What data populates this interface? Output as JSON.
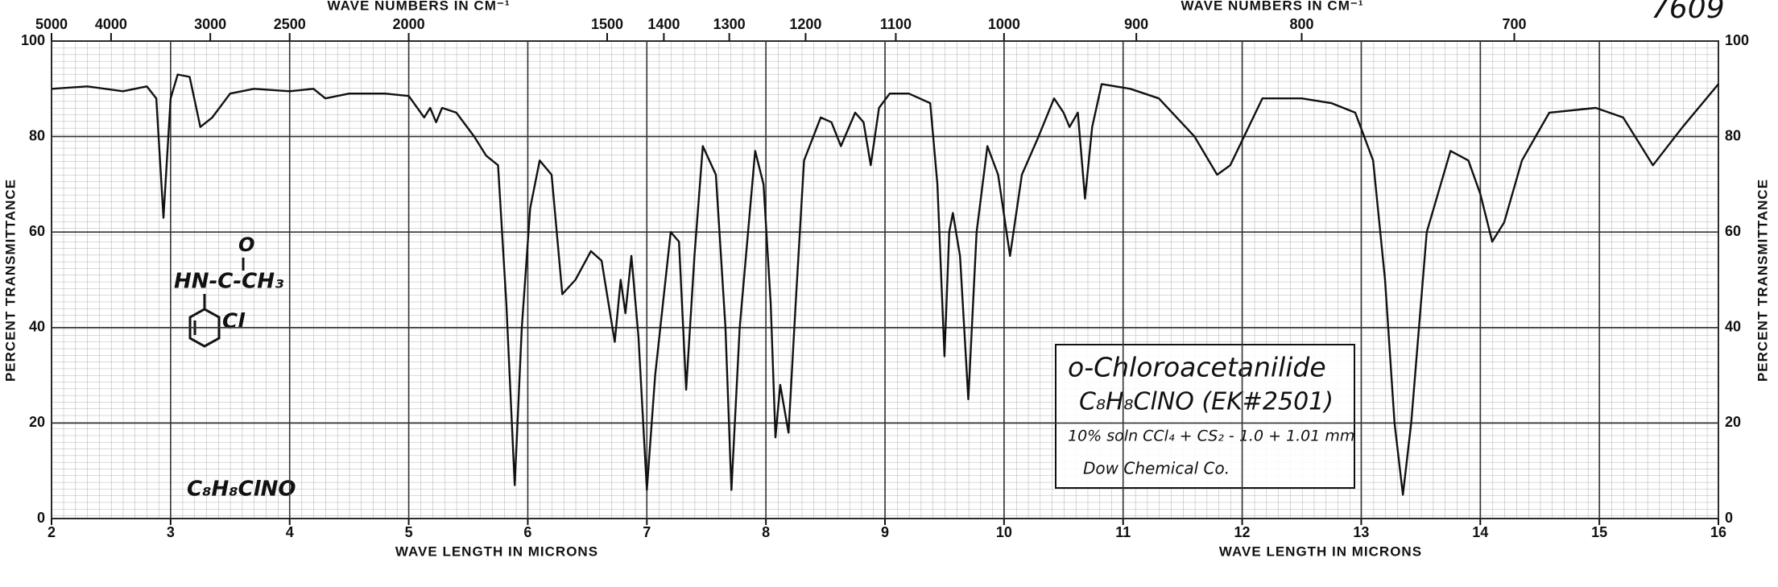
{
  "chart_data": {
    "type": "line",
    "xlabel": "WAVE LENGTH IN MICRONS",
    "ylabel": "PERCENT TRANSMITTANCE",
    "top_axis_label": "WAVE NUMBERS IN CM⁻¹",
    "annotations": [
      "o-Chloroacetanilide",
      "C₈H₈ClNO (EK#2501)",
      "10% soln CCl₄ + CS₂ - 1.0 + 1.01 mm",
      "Dow Chemical Co.",
      "C₈H₈ClNO",
      "7609",
      "O",
      "HN-C-CH₃",
      "Cl"
    ],
    "xlim": [
      2,
      16
    ],
    "xticks": [
      2,
      3,
      4,
      5,
      6,
      7,
      8,
      9,
      10,
      11,
      12,
      13,
      14,
      15,
      16
    ],
    "ylim": [
      0,
      100
    ],
    "yticks": [
      0,
      20,
      40,
      60,
      80,
      100
    ],
    "top_ticks": [
      5000,
      4000,
      3000,
      2500,
      2000,
      1500,
      1400,
      1300,
      1200,
      1100,
      1000,
      900,
      800,
      700
    ],
    "grid": true,
    "color": "#111111",
    "x": [
      2.0,
      2.3,
      2.6,
      2.8,
      2.88,
      2.94,
      3.0,
      3.06,
      3.16,
      3.25,
      3.35,
      3.5,
      3.7,
      4.0,
      4.2,
      4.3,
      4.5,
      4.8,
      5.0,
      5.13,
      5.18,
      5.23,
      5.28,
      5.4,
      5.55,
      5.65,
      5.75,
      5.82,
      5.89,
      5.95,
      6.02,
      6.1,
      6.2,
      6.29,
      6.4,
      6.53,
      6.62,
      6.73,
      6.78,
      6.82,
      6.87,
      6.93,
      7.0,
      7.07,
      7.2,
      7.27,
      7.33,
      7.4,
      7.47,
      7.58,
      7.66,
      7.71,
      7.78,
      7.91,
      7.98,
      8.04,
      8.08,
      8.12,
      8.19,
      8.25,
      8.32,
      8.46,
      8.55,
      8.63,
      8.75,
      8.82,
      8.88,
      8.95,
      9.04,
      9.2,
      9.38,
      9.44,
      9.5,
      9.54,
      9.57,
      9.63,
      9.7,
      9.77,
      9.86,
      9.95,
      10.05,
      10.15,
      10.29,
      10.42,
      10.5,
      10.55,
      10.62,
      10.68,
      10.74,
      10.82,
      11.06,
      11.3,
      11.6,
      11.79,
      11.9,
      12.17,
      12.5,
      12.75,
      12.95,
      13.1,
      13.2,
      13.28,
      13.35,
      13.42,
      13.55,
      13.75,
      13.9,
      14.0,
      14.1,
      14.2,
      14.35,
      14.58,
      14.97,
      15.2,
      15.45,
      15.7,
      16.0
    ],
    "values": [
      90,
      90.5,
      89.5,
      90.5,
      88,
      63,
      88,
      93,
      92.5,
      82,
      84,
      89,
      90,
      89.5,
      90,
      88,
      89,
      89,
      88.5,
      84,
      86,
      83,
      86,
      85,
      80,
      76,
      74,
      45,
      7,
      40,
      65,
      75,
      72,
      47,
      50,
      56,
      54,
      37,
      50,
      43,
      55,
      38,
      6,
      30,
      60,
      58,
      27,
      55,
      78,
      72,
      40,
      6,
      40,
      77,
      70,
      45,
      17,
      28,
      18,
      45,
      75,
      84,
      83,
      78,
      85,
      83,
      74,
      86,
      89,
      89,
      87,
      70,
      34,
      60,
      64,
      55,
      25,
      60,
      78,
      72,
      55,
      72,
      80,
      88,
      85,
      82,
      85,
      67,
      82,
      91,
      90,
      88,
      80,
      72,
      74,
      88,
      88,
      87,
      85,
      75,
      50,
      20,
      5,
      20,
      60,
      77,
      75,
      68,
      58,
      62,
      75,
      85,
      86,
      84,
      74,
      82,
      91
    ]
  }
}
